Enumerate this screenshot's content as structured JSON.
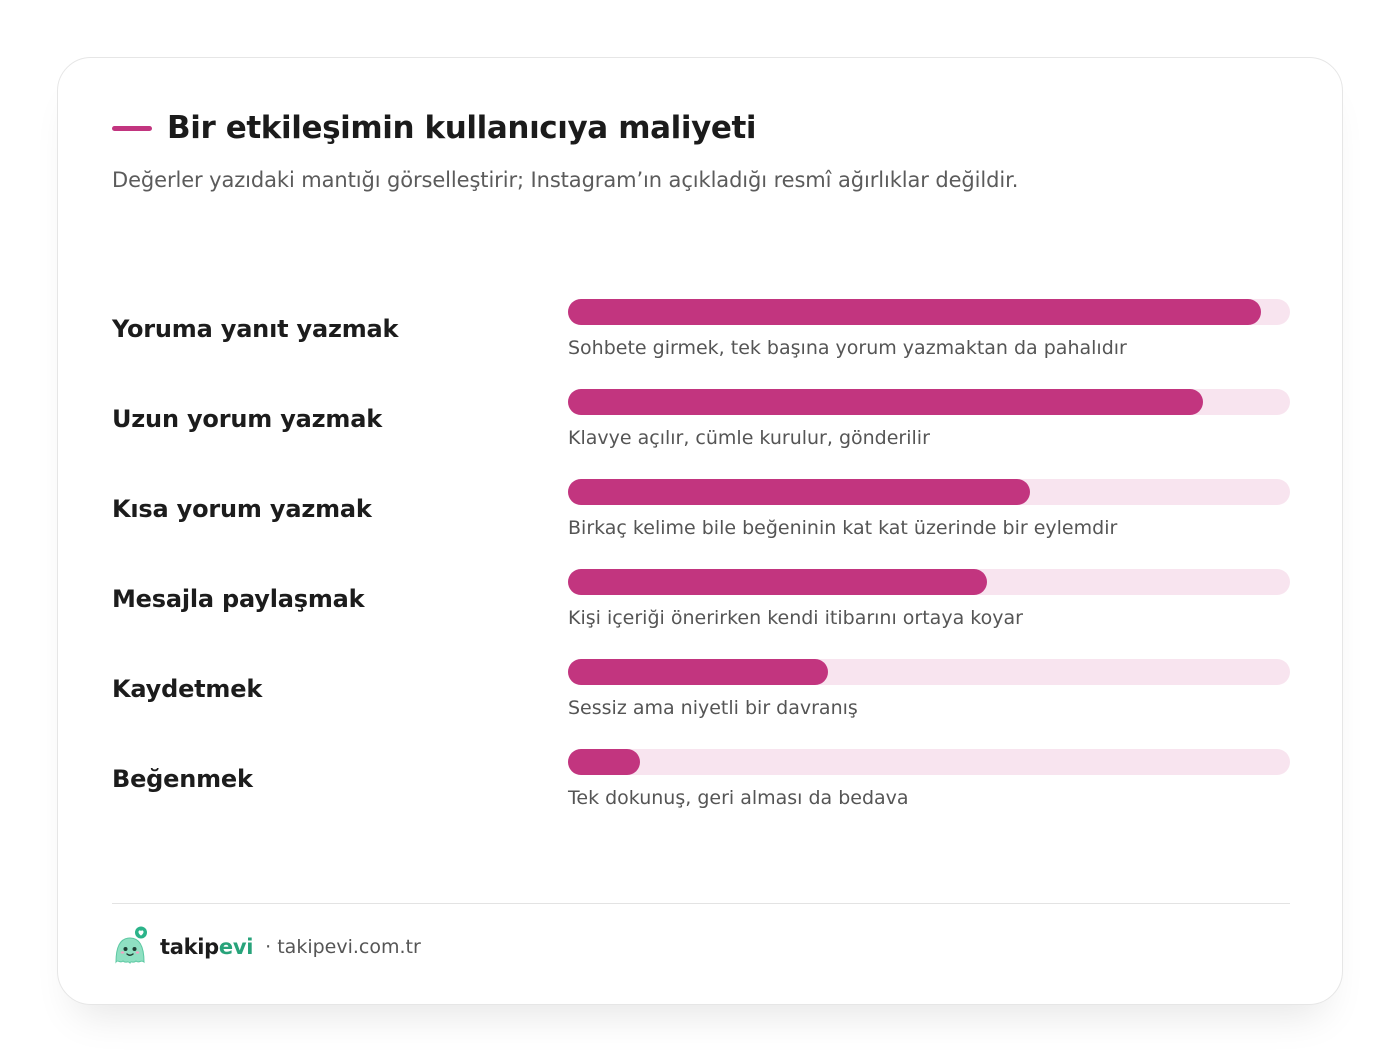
{
  "header": {
    "title": "Bir etkileşimin kullanıcıya maliyeti",
    "subtitle": "Değerler yazıdaki mantığı görselleştirir; Instagram’ın açıkladığı resmî ağırlıklar değildir."
  },
  "colors": {
    "accent": "#c2357f",
    "track": "#f8e4ef",
    "brand_green": "#27a37a"
  },
  "chart_data": {
    "type": "bar",
    "orientation": "horizontal",
    "title": "Bir etkileşimin kullanıcıya maliyeti",
    "subtitle": "Değerler yazıdaki mantığı görselleştirir; Instagram’ın açıkladığı resmî ağırlıklar değildir.",
    "xlim": [
      0,
      100
    ],
    "grid": false,
    "categories": [
      "Yoruma yanıt yazmak",
      "Uzun yorum yazmak",
      "Kısa yorum yazmak",
      "Mesajla paylaşmak",
      "Kaydetmek",
      "Beğenmek"
    ],
    "values": [
      96,
      88,
      64,
      58,
      36,
      10
    ],
    "annotations": [
      "Sohbete girmek, tek başına yorum yazmaktan da pahalıdır",
      "Klavye açılır, cümle kurulur, gönderilir",
      "Birkaç kelime bile beğeninin kat kat üzerinde bir eylemdir",
      "Kişi içeriği önerirken kendi itibarını ortaya koyar",
      "Sessiz ama niyetli bir davranış",
      "Tek dokunuş, geri alması da bedava"
    ]
  },
  "footer": {
    "brand_prefix": "takip",
    "brand_suffix": "evi",
    "url": "· takipevi.com.tr",
    "logo_icon": "ghost-mascot-icon"
  }
}
